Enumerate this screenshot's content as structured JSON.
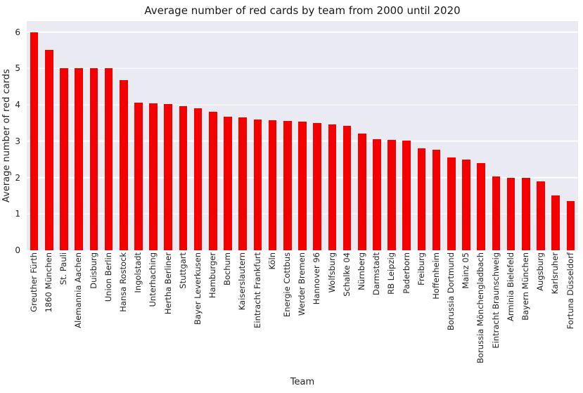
{
  "chart_data": {
    "type": "bar",
    "title": "Average number of red cards by team from 2000 until 2020",
    "xlabel": "Team",
    "ylabel": "Average number of red cards",
    "ylim": [
      0,
      6.3
    ],
    "yticks": [
      0,
      1,
      2,
      3,
      4,
      5,
      6
    ],
    "bar_color": "#f40000",
    "plot_background": "#eaeaf2",
    "grid_color": "#ffffff",
    "grid": "horizontal",
    "legend": "none",
    "categories": [
      "Greuther Fürth",
      "1860 München",
      "St. Pauli",
      "Alemannia Aachen",
      "Duisburg",
      "Union Berlin",
      "Hansa Rostock",
      "Ingolstadt",
      "Unterhaching",
      "Hertha Berliner",
      "Stuttgart",
      "Bayer Leverkusen",
      "Hamburger",
      "Bochum",
      "Kaiserslautern",
      "Eintracht Frankfurt",
      "Köln",
      "Energie Cottbus",
      "Werder Bremen",
      "Hannover 96",
      "Wolfsburg",
      "Schalke 04",
      "Nürnberg",
      "Darmstadt",
      "RB Leipzig",
      "Paderborn",
      "Freiburg",
      "Hoffenheim",
      "Borussia Dortmund",
      "Mainz 05",
      "Borussia Mönchengladbach",
      "Eintracht Braunschweig",
      "Arminia Bielefeld",
      "Bayern München",
      "Augsburg",
      "Karlsruher",
      "Fortuna Düsseldorf"
    ],
    "values": [
      6.0,
      5.5,
      5.0,
      5.0,
      5.0,
      5.0,
      4.67,
      4.05,
      4.03,
      4.02,
      3.97,
      3.9,
      3.8,
      3.67,
      3.65,
      3.6,
      3.57,
      3.55,
      3.53,
      3.5,
      3.45,
      3.43,
      3.2,
      3.05,
      3.03,
      3.02,
      2.8,
      2.77,
      2.55,
      2.5,
      2.4,
      2.02,
      2.0,
      2.0,
      1.9,
      1.5,
      1.35
    ]
  }
}
